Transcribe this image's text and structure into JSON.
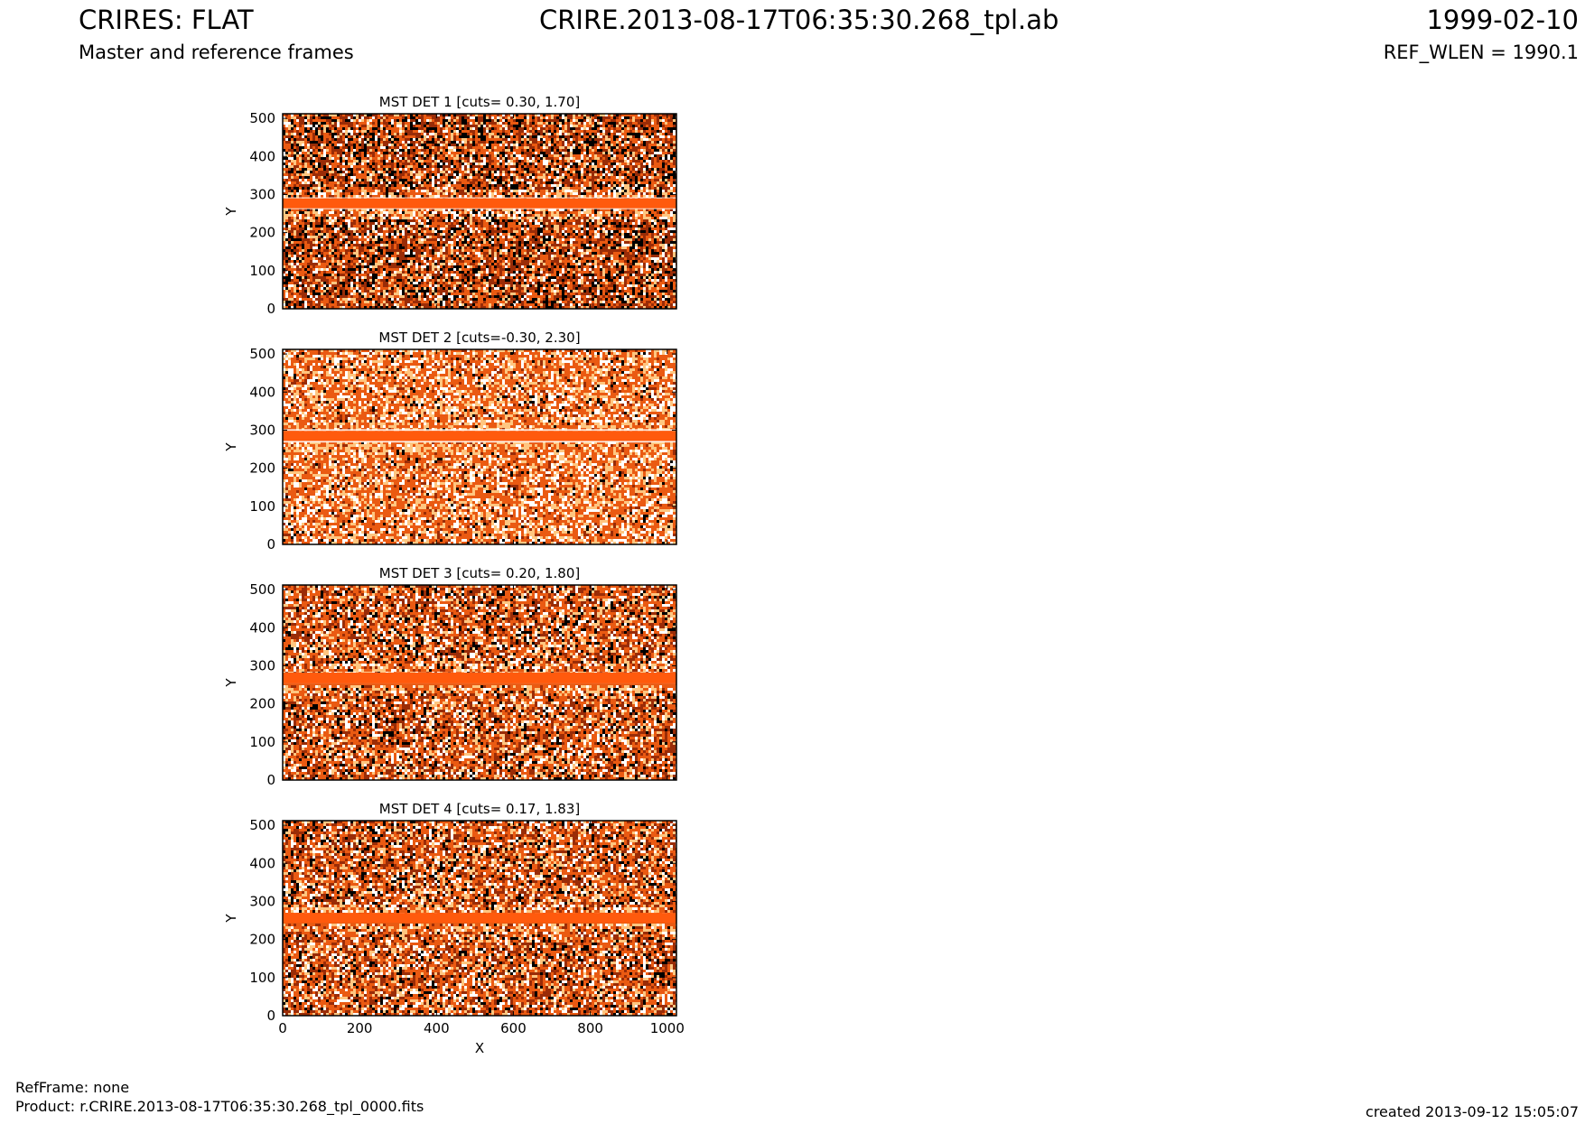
{
  "header": {
    "title": "CRIRES: FLAT",
    "subtitle": "Master and reference frames",
    "filename": "CRIRE.2013-08-17T06:35:30.268_tpl.ab",
    "date": "1999-02-10",
    "ref_wlen": "REF_WLEN = 1990.1"
  },
  "footer": {
    "ref_frame": "RefFrame: none",
    "product": "Product: r.CRIRE.2013-08-17T06:35:30.268_tpl_0000.fits",
    "created": "created 2013-09-12 15:05:07"
  },
  "colors": {
    "band": "#ff5a0d",
    "pixel_dark": "#000000",
    "pixel_mid": "#9a2c07",
    "pixel_orange": "#ea5a12",
    "pixel_light": "#ffc680",
    "pixel_white": "#ffffff"
  },
  "chart_data": [
    {
      "type": "heatmap",
      "title": "MST DET 1 [cuts= 0.30, 1.70]",
      "xlabel": "",
      "ylabel": "Y",
      "xlim": [
        0,
        1024
      ],
      "ylim": [
        0,
        512
      ],
      "xticks": [],
      "yticks": [
        0,
        100,
        200,
        300,
        400,
        500
      ],
      "cuts": [
        0.3,
        1.7
      ],
      "band": {
        "y_start": 264,
        "y_end": 290,
        "edge_white": [
          252,
          302
        ]
      },
      "noise_level": "dark"
    },
    {
      "type": "heatmap",
      "title": "MST DET 2 [cuts=-0.30, 2.30]",
      "xlabel": "",
      "ylabel": "Y",
      "xlim": [
        0,
        1024
      ],
      "ylim": [
        0,
        512
      ],
      "xticks": [],
      "yticks": [
        0,
        100,
        200,
        300,
        400,
        500
      ],
      "cuts": [
        -0.3,
        2.3
      ],
      "band": {
        "y_start": 272,
        "y_end": 298,
        "edge_white": [
          258,
          312
        ]
      },
      "noise_level": "light"
    },
    {
      "type": "heatmap",
      "title": "MST DET 3 [cuts= 0.20, 1.80]",
      "xlabel": "",
      "ylabel": "Y",
      "xlim": [
        0,
        1024
      ],
      "ylim": [
        0,
        512
      ],
      "xticks": [],
      "yticks": [
        0,
        100,
        200,
        300,
        400,
        500
      ],
      "cuts": [
        0.2,
        1.8
      ],
      "band": {
        "y_start": 254,
        "y_end": 282,
        "edge_white": [
          244,
          292
        ]
      },
      "noise_level": "medium"
    },
    {
      "type": "heatmap",
      "title": "MST DET 4 [cuts= 0.17, 1.83]",
      "xlabel": "X",
      "ylabel": "Y",
      "xlim": [
        0,
        1024
      ],
      "ylim": [
        0,
        512
      ],
      "xticks": [
        0,
        200,
        400,
        600,
        800,
        1000
      ],
      "yticks": [
        0,
        100,
        200,
        300,
        400,
        500
      ],
      "cuts": [
        0.17,
        1.83
      ],
      "band": {
        "y_start": 244,
        "y_end": 270,
        "edge_white": [
          236,
          278
        ]
      },
      "noise_level": "medium"
    }
  ]
}
